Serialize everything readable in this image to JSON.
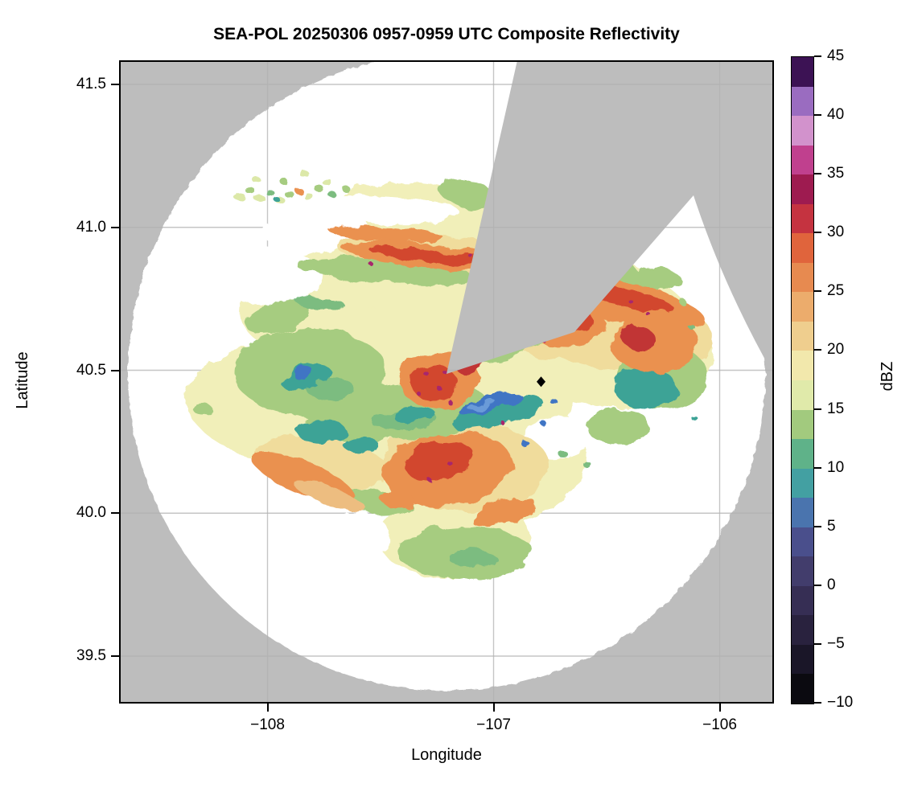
{
  "title": "SEA-POL 20250306 0957-0959 UTC Composite Reflectivity",
  "axes": {
    "x": {
      "label": "Longitude",
      "ticks": [
        {
          "value": -108,
          "label": "−108"
        },
        {
          "value": -107,
          "label": "−107"
        },
        {
          "value": -106,
          "label": "−106"
        }
      ]
    },
    "y": {
      "label": "Latitude",
      "ticks": [
        {
          "value": 41.5,
          "label": "41.5"
        },
        {
          "value": 41.0,
          "label": "41.0"
        },
        {
          "value": 40.5,
          "label": "40.5"
        },
        {
          "value": 40.0,
          "label": "40.0"
        },
        {
          "value": 39.5,
          "label": "39.5"
        }
      ]
    }
  },
  "colorbar": {
    "label": "dBZ",
    "min": -10,
    "max": 45,
    "tick_values": [
      45,
      40,
      35,
      30,
      25,
      20,
      15,
      10,
      5,
      0,
      -5,
      -10
    ],
    "tick_labels": [
      "45",
      "40",
      "35",
      "30",
      "25",
      "20",
      "15",
      "10",
      "5",
      "0",
      "−5",
      "−10"
    ],
    "segment_step_dbz": 2.5,
    "segment_colors_low_to_high": [
      "#0b0a10",
      "#1a1628",
      "#29223e",
      "#362e54",
      "#423d6c",
      "#4a4f8c",
      "#4a74ae",
      "#43a0a2",
      "#5fb289",
      "#a2ca7e",
      "#e0eaaa",
      "#f2e8ac",
      "#efce8e",
      "#ecac6c",
      "#e78a50",
      "#e0643c",
      "#c53340",
      "#9e1b50",
      "#c0408e",
      "#d292cc",
      "#9a6cc0",
      "#3c1254"
    ]
  },
  "map": {
    "background_color": "#bdbdbd",
    "coverage_color": "#ffffff",
    "grid_color": "#b2b2b2",
    "frame_color": "#000000",
    "marker": {
      "shape": "diamond",
      "color": "#000000",
      "lon": -106.79,
      "lat": 40.46
    }
  },
  "chart_data": {
    "type": "heatmap",
    "subtype": "radar_composite_reflectivity_ppi",
    "title": "SEA-POL 20250306 0957-0959 UTC Composite Reflectivity",
    "xlabel": "Longitude",
    "ylabel": "Latitude",
    "xlim": [
      -108.66,
      -105.76
    ],
    "ylim": [
      39.33,
      41.58
    ],
    "x_ticks": [
      -108,
      -107,
      -106
    ],
    "y_ticks": [
      41.5,
      41.0,
      40.5,
      40.0,
      39.5
    ],
    "grid": true,
    "colorbar": {
      "label": "dBZ",
      "range": [
        -10,
        45
      ],
      "tick_step": 5,
      "position": "right"
    },
    "radar": {
      "center_lon": -107.21,
      "center_lat": 40.5,
      "range_deg_lon": 1.42,
      "no_data_outside_range": true,
      "blocked_sector": {
        "azimuth_start_deg": 5,
        "azimuth_end_deg": 55,
        "note": "gray wedge from radar center toward NNE-ENE with echo-free white sector inside it"
      }
    },
    "marker": {
      "lon": -106.79,
      "lat": 40.46,
      "shape": "diamond",
      "color": "black"
    },
    "echo_regions": [
      {
        "feature": "scattered speckle line NW",
        "lat": 41.1,
        "lon_range": [
          -107.55,
          -107.1
        ],
        "dbz": [
          10,
          18
        ]
      },
      {
        "feature": "orange band",
        "lat": 40.97,
        "lon_range": [
          -107.35,
          -106.8
        ],
        "dbz": [
          22,
          28
        ]
      },
      {
        "feature": "intense WNW-ESE band",
        "lat": 40.85,
        "lon_range": [
          -107.3,
          -106.3
        ],
        "dbz": [
          25,
          32
        ]
      },
      {
        "feature": "NE lobe of moderate echo",
        "lat_range": [
          40.55,
          40.78
        ],
        "lon_range": [
          -106.9,
          -106.25
        ],
        "dbz": [
          18,
          30
        ]
      },
      {
        "feature": "west green/teal weak echo",
        "lat": 40.55,
        "lon_range": [
          -107.95,
          -107.5
        ],
        "dbz": [
          5,
          15
        ]
      },
      {
        "feature": "central red/magenta cluster near radar",
        "lat": 40.45,
        "lon": -107.25,
        "dbz": [
          28,
          36
        ]
      },
      {
        "feature": "blue low-reflectivity streak",
        "lat": 40.38,
        "lon_range": [
          -107.05,
          -106.75
        ],
        "dbz": [
          0,
          8
        ]
      },
      {
        "feature": "southern orange blob",
        "lat_range": [
          40.1,
          40.3
        ],
        "lon_range": [
          -107.3,
          -106.8
        ],
        "dbz": [
          22,
          30
        ]
      },
      {
        "feature": "southwest diagonal orange streaks",
        "lat": 40.25,
        "lon_range": [
          -107.85,
          -107.5
        ],
        "dbz": [
          20,
          26
        ]
      },
      {
        "feature": "southern weak tail",
        "lat_range": [
          39.95,
          40.1
        ],
        "lon_range": [
          -107.35,
          -106.9
        ],
        "dbz": [
          10,
          18
        ]
      },
      {
        "feature": "isolated small cell far west",
        "lat": 40.42,
        "lon": -108.05,
        "dbz": [
          12,
          16
        ]
      }
    ]
  }
}
